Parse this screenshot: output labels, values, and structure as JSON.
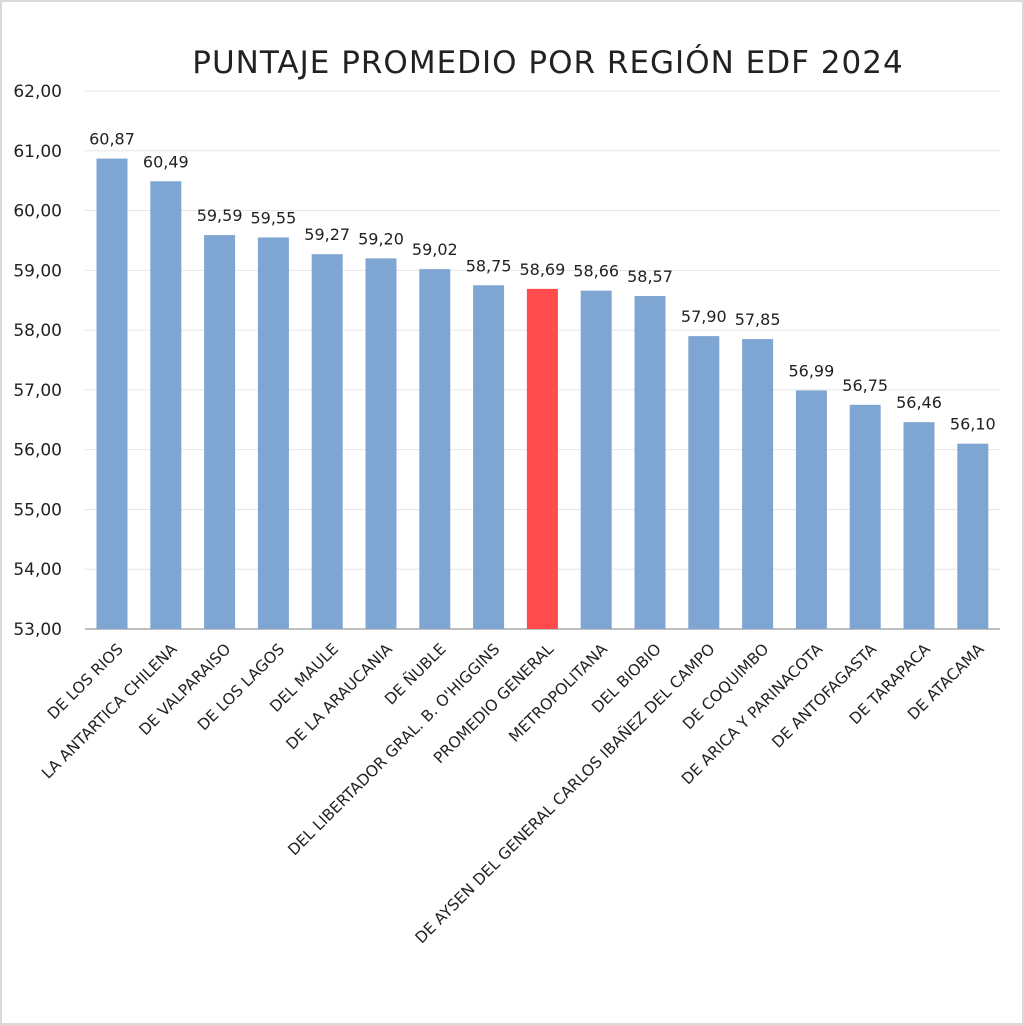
{
  "chart_data": {
    "type": "bar",
    "title": "PUNTAJE PROMEDIO POR REGIÓN EDF 2024",
    "categories": [
      "DE LOS RIOS",
      "LA ANTARTICA  CHILENA",
      "DE VALPARAISO",
      "DE LOS LAGOS",
      "DEL MAULE",
      "DE LA ARAUCANIA",
      "DE ÑUBLE",
      "DEL LIBERTADOR GRAL. B. O'HIGGINS",
      "PROMEDIO GENERAL",
      "METROPOLITANA",
      "DEL BIOBIO",
      "DE AYSEN DEL GENERAL CARLOS IBAÑEZ DEL CAMPO",
      "DE COQUIMBO",
      "DE ARICA Y PARINACOTA",
      "DE ANTOFAGASTA",
      "DE TARAPACA",
      "DE ATACAMA"
    ],
    "values": [
      60.87,
      60.49,
      59.59,
      59.55,
      59.27,
      59.2,
      59.02,
      58.75,
      58.69,
      58.66,
      58.57,
      57.9,
      57.85,
      56.99,
      56.75,
      56.46,
      56.1
    ],
    "data_labels": [
      "60,87",
      "60,49",
      "59,59",
      "59,55",
      "59,27",
      "59,20",
      "59,02",
      "58,75",
      "58,69",
      "58,66",
      "58,57",
      "57,90",
      "57,85",
      "56,99",
      "56,75",
      "56,46",
      "56,10"
    ],
    "ylim": [
      53,
      62
    ],
    "yticks": [
      "53,00",
      "54,00",
      "55,00",
      "56,00",
      "57,00",
      "58,00",
      "59,00",
      "60,00",
      "61,00",
      "62,00"
    ],
    "xlabel": "",
    "ylabel": "",
    "grid": true,
    "colors": {
      "bar": "#7fa6d2",
      "highlight": "#ff4b4b",
      "highlight_category": "PROMEDIO GENERAL",
      "grid": "#e6e6e6",
      "axis": "#bfbfbf"
    }
  }
}
